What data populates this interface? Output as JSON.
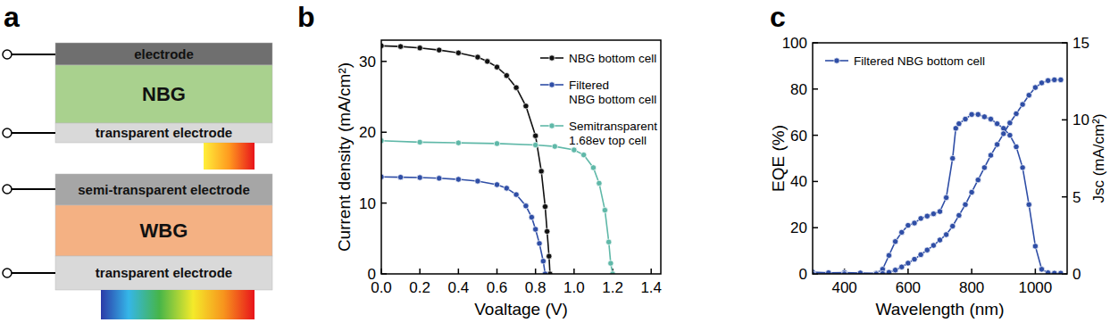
{
  "panel_labels": [
    "a",
    "b",
    "c"
  ],
  "diagram": {
    "top_stack": [
      "electrode",
      "NBG",
      "transparent electrode"
    ],
    "bottom_stack": [
      "semi-transparent electrode",
      "WBG",
      "transparent electrode"
    ]
  },
  "chart_data": [
    {
      "type": "line",
      "x_label": "Voaltage (V)",
      "y_label": "Current density (mA/cm²)",
      "xlim": [
        0,
        1.45
      ],
      "ylim": [
        0,
        33
      ],
      "xticks": [
        {
          "value": 0,
          "label": "0.0"
        },
        0.2,
        0.4,
        0.6,
        0.8,
        {
          "value": 1,
          "label": "1.0"
        },
        1.2,
        1.4
      ],
      "yticks": [
        0,
        10,
        20,
        30
      ],
      "legend": "upper right",
      "marker": "circle",
      "series": [
        {
          "name": "NBG bottom cell",
          "color": "#111111",
          "x": [
            0,
            0.1,
            0.2,
            0.3,
            0.4,
            0.5,
            0.55,
            0.6,
            0.65,
            0.7,
            0.75,
            0.8,
            0.83,
            0.85,
            0.86,
            0.87,
            0.875
          ],
          "values": [
            32.2,
            32.1,
            31.9,
            31.6,
            31.2,
            30.6,
            30.0,
            29.2,
            28.0,
            26.3,
            23.7,
            19.5,
            14.5,
            9.5,
            6.0,
            2.5,
            0
          ]
        },
        {
          "name": "Filtered NBG bottom cell",
          "color": "#2f4ea6",
          "x": [
            0,
            0.1,
            0.2,
            0.3,
            0.4,
            0.5,
            0.6,
            0.65,
            0.7,
            0.75,
            0.78,
            0.8,
            0.82,
            0.84,
            0.85
          ],
          "values": [
            13.7,
            13.65,
            13.6,
            13.5,
            13.35,
            13.1,
            12.6,
            12.1,
            11.2,
            9.6,
            8.0,
            6.3,
            4.3,
            1.8,
            0
          ]
        },
        {
          "name": "Semitransparent 1.68ev top cell",
          "color": "#5fb8a8",
          "x": [
            0,
            0.2,
            0.4,
            0.6,
            0.8,
            0.9,
            1.0,
            1.05,
            1.1,
            1.13,
            1.16,
            1.18,
            1.19,
            1.2
          ],
          "values": [
            18.8,
            18.6,
            18.5,
            18.4,
            18.2,
            18.0,
            17.5,
            16.8,
            15.0,
            12.8,
            9.0,
            4.5,
            1.5,
            0
          ]
        }
      ]
    },
    {
      "type": "line",
      "x_label": "Wavelength (nm)",
      "y_label": "EQE (%)",
      "y2_label": "Jsc (mA/cm²)",
      "xlim": [
        300,
        1100
      ],
      "ylim": [
        0,
        100
      ],
      "y2lim": [
        0,
        15
      ],
      "xticks": [
        400,
        600,
        800,
        1000
      ],
      "yticks": [
        0,
        20,
        40,
        60,
        80,
        100
      ],
      "y2ticks": [
        0,
        5,
        10,
        15
      ],
      "legend": "upper left",
      "marker": "circle",
      "series": [
        {
          "name": "Filtered NBG bottom cell",
          "color": "#2f4ea6",
          "x": [
            300,
            350,
            400,
            450,
            500,
            520,
            540,
            560,
            580,
            600,
            620,
            640,
            660,
            680,
            700,
            720,
            740,
            750,
            760,
            780,
            800,
            820,
            840,
            860,
            880,
            900,
            920,
            940,
            960,
            980,
            1000,
            1020,
            1040,
            1060,
            1080
          ],
          "values": [
            0.8,
            0.5,
            0.6,
            0.4,
            0.3,
            2,
            8,
            14,
            18,
            21,
            22,
            24,
            25,
            26,
            27,
            33,
            50,
            63,
            65,
            67,
            69,
            69,
            68,
            67,
            65,
            63,
            60,
            55,
            46,
            30,
            12,
            2,
            0.5,
            0.3,
            0.3
          ]
        },
        {
          "color": "#2f4ea6",
          "axis": "y2",
          "x": [
            300,
            400,
            500,
            520,
            540,
            560,
            580,
            600,
            620,
            640,
            660,
            680,
            700,
            720,
            740,
            760,
            780,
            800,
            820,
            840,
            860,
            880,
            900,
            920,
            940,
            960,
            980,
            1000,
            1020,
            1040,
            1060,
            1080
          ],
          "values": [
            0,
            0,
            0,
            0.02,
            0.1,
            0.25,
            0.45,
            0.7,
            0.95,
            1.25,
            1.55,
            1.85,
            2.2,
            2.55,
            3.1,
            3.8,
            4.5,
            5.3,
            6.1,
            6.9,
            7.7,
            8.4,
            9.1,
            9.8,
            10.4,
            11.0,
            11.6,
            12.1,
            12.4,
            12.55,
            12.6,
            12.6
          ]
        }
      ]
    }
  ]
}
